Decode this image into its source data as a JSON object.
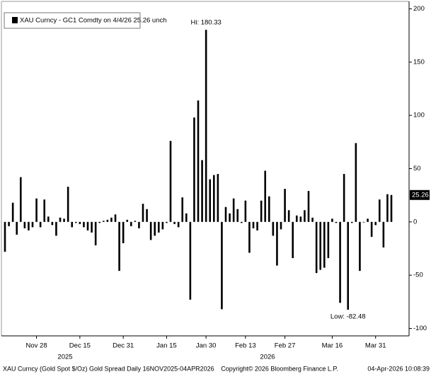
{
  "chart_data": {
    "type": "bar",
    "legend_label": "XAU Curncy - GC1 Comdty on 4/4/26 25.26  unch",
    "hi_label": "Hi: 180.33",
    "low_label": "Low: -82.48",
    "categories": [
      null,
      null,
      null,
      null,
      null,
      null,
      null,
      null,
      "Nov 28",
      null,
      null,
      null,
      null,
      null,
      null,
      null,
      null,
      null,
      null,
      "Dec 15",
      null,
      null,
      null,
      null,
      null,
      null,
      null,
      null,
      null,
      null,
      "Dec 31",
      null,
      null,
      null,
      null,
      null,
      null,
      null,
      null,
      null,
      null,
      "Jan 15",
      null,
      null,
      null,
      null,
      null,
      null,
      null,
      null,
      null,
      "Jan 30",
      null,
      null,
      null,
      null,
      null,
      null,
      null,
      null,
      null,
      "Feb 13",
      null,
      null,
      null,
      null,
      null,
      null,
      null,
      null,
      null,
      "Feb 27",
      null,
      null,
      null,
      null,
      null,
      null,
      null,
      null,
      null,
      null,
      null,
      "Mar 16",
      null,
      null,
      null,
      null,
      null,
      null,
      null,
      null,
      null,
      null,
      "Mar 31",
      null,
      null,
      null,
      null
    ],
    "values": [
      -28,
      -4,
      18,
      -12,
      42,
      -6,
      -8,
      -5,
      22,
      -5,
      21,
      5,
      -3,
      -13,
      4,
      3,
      33,
      -5,
      -1,
      -2,
      -5,
      -8,
      -10,
      -22,
      -1,
      1,
      2,
      4,
      7,
      -46,
      -20,
      2,
      -4,
      1,
      -6,
      17,
      12,
      -17,
      -13,
      -10,
      -7,
      -1,
      76,
      -2,
      -5,
      23,
      8,
      -73,
      98,
      114,
      58,
      180.33,
      40,
      44,
      45,
      -82,
      14,
      8,
      22,
      12,
      -1,
      20,
      -29,
      -6,
      -8,
      20,
      48,
      24,
      -13,
      -41,
      -7,
      31,
      11,
      -34,
      6,
      5,
      11,
      29,
      4,
      -48,
      -45,
      -43,
      -34,
      3,
      -1,
      -76,
      45,
      -82.48,
      -1,
      74,
      -46,
      0,
      3,
      -14,
      -3,
      21,
      -24,
      26,
      25.26
    ],
    "color": "#000000",
    "years": [
      "2025",
      "2026"
    ],
    "ylim": [
      -107,
      207
    ],
    "yticks": [
      200,
      150,
      100,
      50,
      0,
      -50,
      -100
    ],
    "grid": false,
    "footer_left": "XAU Curncy (Gold Spot  $/Oz) Gold Spread Daily 16NOV2025-04APR2026",
    "footer_center": "Copyright© 2026 Bloomberg Finance L.P.",
    "footer_right": "04-Apr-2026 10:08:39"
  }
}
